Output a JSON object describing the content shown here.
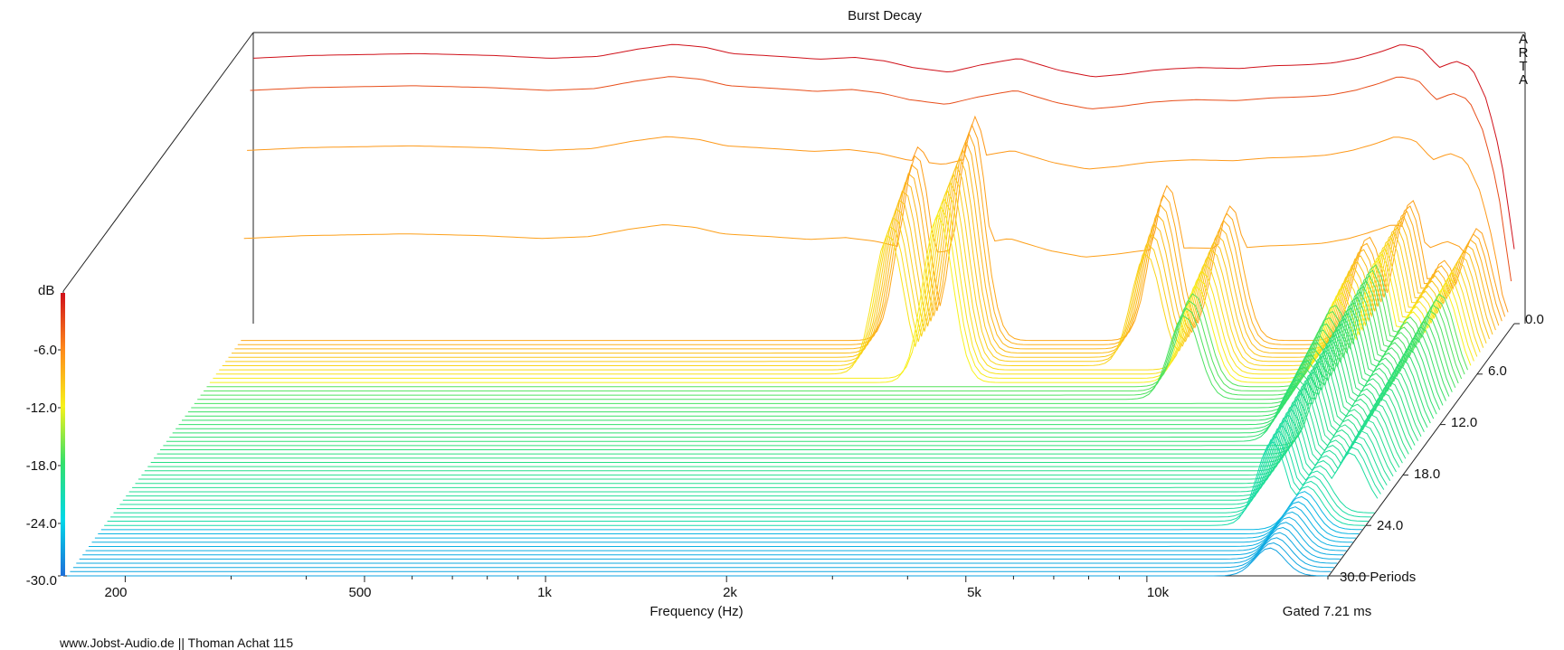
{
  "chart_data": {
    "type": "waterfall-3d",
    "title": "Burst Decay",
    "xlabel": "Frequency (Hz)",
    "x_scale": "log",
    "x_ticks": [
      "200",
      "500",
      "1k",
      "2k",
      "5k",
      "10k"
    ],
    "x_tick_values": [
      200,
      500,
      1000,
      2000,
      5000,
      10000
    ],
    "xlim": [
      160,
      20000
    ],
    "zlabel": "dB",
    "z_ticks": [
      "-6.0",
      "-12.0",
      "-18.0",
      "-24.0",
      "-30.0"
    ],
    "zlim": [
      -30,
      0
    ],
    "depth_ticks": [
      "0.0",
      "6.0",
      "12.0",
      "18.0",
      "24.0",
      "30.0 Periods"
    ],
    "depth_tick_values": [
      0,
      6,
      12,
      18,
      24,
      30
    ],
    "depth_unit": "Periods",
    "gating": "Gated 7.21 ms",
    "watermark": [
      "A",
      "R",
      "T",
      "A"
    ],
    "colormap": [
      "#1e6fd9",
      "#00d8e8",
      "#33e06a",
      "#f7f21a",
      "#ff8a1a",
      "#d0101a"
    ],
    "frequency_response_db": {
      "freq_hz": [
        160,
        200,
        300,
        400,
        500,
        600,
        700,
        800,
        900,
        1000,
        1200,
        1400,
        1600,
        1800,
        2000,
        2300,
        2600,
        3000,
        3500,
        4000,
        4500,
        5000,
        5500,
        6000,
        7000,
        8000,
        9000,
        10000,
        11000,
        12000,
        13000,
        14000,
        15000,
        16000,
        17000,
        18000,
        19000,
        20000
      ],
      "level_db": [
        -1.5,
        -1.2,
        -1.0,
        -1.2,
        -1.5,
        -1.3,
        -0.5,
        0.0,
        -0.3,
        -1.0,
        -1.3,
        -1.6,
        -1.4,
        -1.8,
        -2.5,
        -3.0,
        -2.2,
        -1.5,
        -2.8,
        -3.5,
        -3.2,
        -2.8,
        -2.6,
        -2.5,
        -2.6,
        -2.3,
        -2.2,
        -2.0,
        -1.5,
        -0.8,
        0.0,
        -0.4,
        -2.5,
        -1.8,
        -2.5,
        -6.0,
        -12.0,
        -22.0
      ]
    },
    "decay_ridges": [
      {
        "freq_hz": 2100,
        "peak_db": -9,
        "decay_periods": 6
      },
      {
        "freq_hz": 2600,
        "peak_db": -6,
        "decay_periods": 7
      },
      {
        "freq_hz": 5500,
        "peak_db": -12,
        "decay_periods": 5
      },
      {
        "freq_hz": 7000,
        "peak_db": -15,
        "decay_periods": 9
      },
      {
        "freq_hz": 12000,
        "peak_db": -18,
        "decay_periods": 14
      },
      {
        "freq_hz": 14000,
        "peak_db": -15,
        "decay_periods": 24
      },
      {
        "freq_hz": 16000,
        "peak_db": -21,
        "decay_periods": 30
      },
      {
        "freq_hz": 18000,
        "peak_db": -18,
        "decay_periods": 22
      }
    ]
  },
  "footer": {
    "credit": "www.Jobst-Audio.de  ||  Thoman Achat 115"
  }
}
